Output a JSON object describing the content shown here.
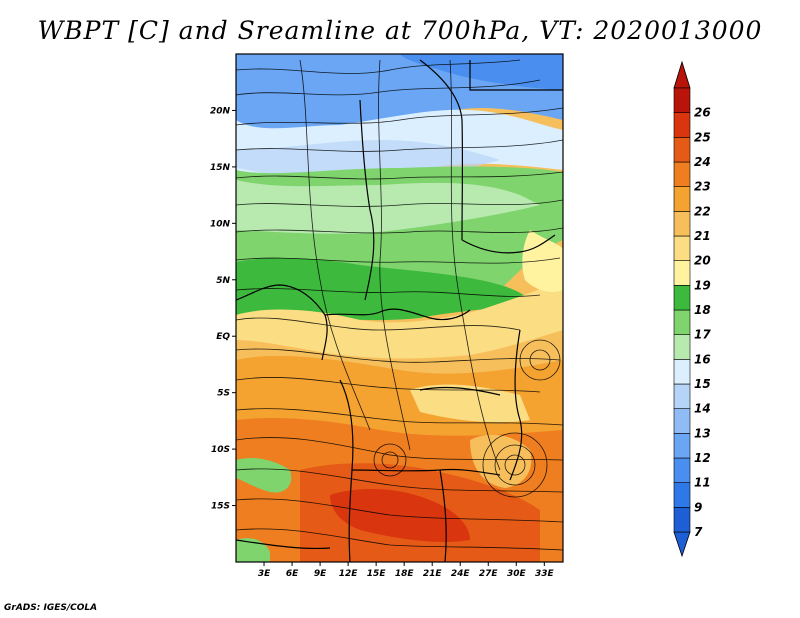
{
  "title": "WBPT [C] and Sreamline at 700hPa, VT: 2020013000",
  "credit": "GrADS: IGES/COLA",
  "map": {
    "lat_labels": [
      "20N",
      "15N",
      "10N",
      "5N",
      "EQ",
      "5S",
      "10S",
      "15S"
    ],
    "lat_values": [
      20,
      15,
      10,
      5,
      0,
      -5,
      -10,
      -15
    ],
    "lon_labels": [
      "3E",
      "6E",
      "9E",
      "12E",
      "15E",
      "18E",
      "21E",
      "24E",
      "27E",
      "30E",
      "33E"
    ],
    "lon_values": [
      3,
      6,
      9,
      12,
      15,
      18,
      21,
      24,
      27,
      30,
      33
    ],
    "lon_range": [
      0,
      35
    ],
    "lat_range": [
      -20,
      25
    ]
  },
  "colorbar": {
    "labels": [
      "7",
      "9",
      "11",
      "12",
      "13",
      "14",
      "15",
      "16",
      "17",
      "18",
      "19",
      "20",
      "21",
      "22",
      "23",
      "24",
      "25",
      "26"
    ],
    "colors": [
      "#1f5fd6",
      "#2f78e8",
      "#4a8ff0",
      "#6aa6f4",
      "#8fbcf5",
      "#b6d4f7",
      "#dcefff",
      "#b8eab0",
      "#7fd46e",
      "#3dba3d",
      "#fff3a0",
      "#fbdd83",
      "#f7bf5c",
      "#f4a230",
      "#ee7e20",
      "#e55a16",
      "#d9350e",
      "#b8140a"
    ]
  }
}
